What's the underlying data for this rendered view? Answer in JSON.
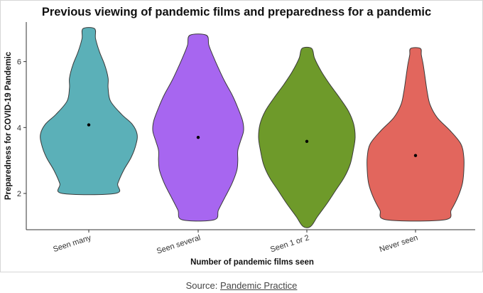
{
  "chart_data": {
    "type": "violin",
    "title": "Previous viewing of pandemic films and preparedness for a pandemic",
    "xlabel": "Number of pandemic films seen",
    "ylabel": "Preparedness for COVID-19 Pandemic",
    "ylim": [
      0.9,
      7.2
    ],
    "yticks": [
      "2",
      "4",
      "6"
    ],
    "grid": false,
    "legend": "none",
    "categories": [
      "Seen many",
      "Seen several",
      "Seen 1 or 2",
      "Never seen"
    ],
    "series": [
      {
        "category": "Seen many",
        "color": "#5bb0b8",
        "mean": 4.08,
        "min": 2.0,
        "max": 7.0,
        "profile": [
          [
            2.0,
            0.55
          ],
          [
            2.3,
            0.6
          ],
          [
            2.7,
            0.72
          ],
          [
            3.1,
            0.88
          ],
          [
            3.5,
            0.98
          ],
          [
            3.8,
            1.0
          ],
          [
            4.1,
            0.9
          ],
          [
            4.4,
            0.68
          ],
          [
            4.8,
            0.45
          ],
          [
            5.2,
            0.4
          ],
          [
            5.5,
            0.4
          ],
          [
            5.9,
            0.33
          ],
          [
            6.3,
            0.22
          ],
          [
            6.7,
            0.14
          ],
          [
            7.0,
            0.12
          ]
        ]
      },
      {
        "category": "Seen several",
        "color": "#a766f0",
        "mean": 3.7,
        "min": 1.2,
        "max": 6.8,
        "profile": [
          [
            1.2,
            0.33
          ],
          [
            1.5,
            0.42
          ],
          [
            1.9,
            0.56
          ],
          [
            2.3,
            0.7
          ],
          [
            2.7,
            0.8
          ],
          [
            3.0,
            0.82
          ],
          [
            3.3,
            0.82
          ],
          [
            3.6,
            0.88
          ],
          [
            3.9,
            0.94
          ],
          [
            4.2,
            0.92
          ],
          [
            4.6,
            0.82
          ],
          [
            5.0,
            0.7
          ],
          [
            5.4,
            0.55
          ],
          [
            5.8,
            0.42
          ],
          [
            6.2,
            0.3
          ],
          [
            6.5,
            0.22
          ],
          [
            6.8,
            0.17
          ]
        ]
      },
      {
        "category": "Seen 1 or 2",
        "color": "#6e9a2a",
        "mean": 3.58,
        "min": 1.0,
        "max": 6.4,
        "profile": [
          [
            1.0,
            0.08
          ],
          [
            1.3,
            0.22
          ],
          [
            1.7,
            0.42
          ],
          [
            2.1,
            0.6
          ],
          [
            2.5,
            0.78
          ],
          [
            2.9,
            0.9
          ],
          [
            3.3,
            0.96
          ],
          [
            3.7,
            1.0
          ],
          [
            4.1,
            0.97
          ],
          [
            4.5,
            0.86
          ],
          [
            4.9,
            0.68
          ],
          [
            5.3,
            0.48
          ],
          [
            5.7,
            0.3
          ],
          [
            6.1,
            0.16
          ],
          [
            6.4,
            0.1
          ]
        ]
      },
      {
        "category": "Never seen",
        "color": "#e2665d",
        "mean": 3.15,
        "min": 1.2,
        "max": 6.4,
        "profile": [
          [
            1.2,
            0.6
          ],
          [
            1.5,
            0.74
          ],
          [
            1.9,
            0.88
          ],
          [
            2.3,
            0.97
          ],
          [
            2.7,
            1.0
          ],
          [
            3.1,
            1.0
          ],
          [
            3.5,
            0.94
          ],
          [
            3.9,
            0.72
          ],
          [
            4.3,
            0.45
          ],
          [
            4.7,
            0.3
          ],
          [
            5.1,
            0.24
          ],
          [
            5.5,
            0.2
          ],
          [
            5.9,
            0.16
          ],
          [
            6.2,
            0.12
          ],
          [
            6.4,
            0.1
          ]
        ]
      }
    ]
  },
  "caption": {
    "prefix": "Source: ",
    "link_text": "Pandemic Practice"
  }
}
